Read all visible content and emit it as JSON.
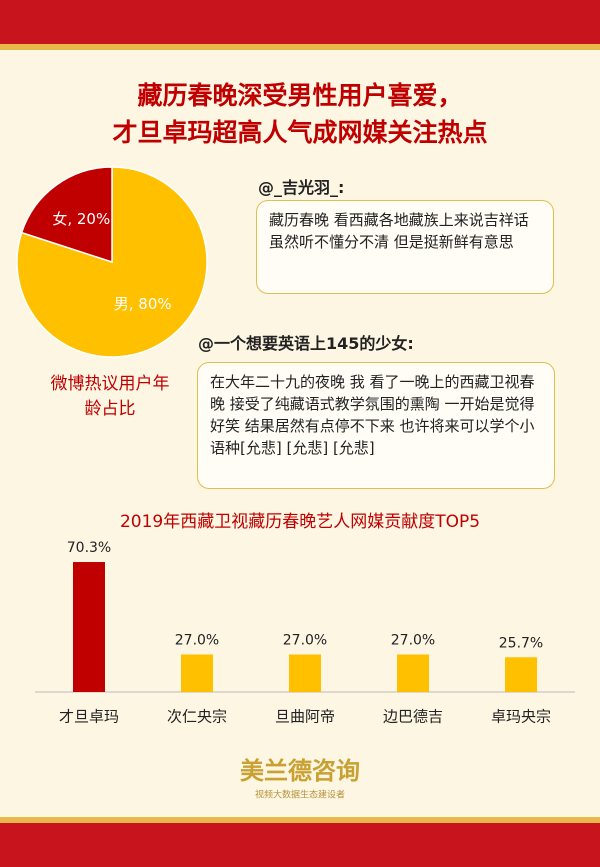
{
  "header": {
    "title_lines": [
      "藏历春晚深受男性用户喜爱，",
      "才旦卓玛超高人气成网媒关注热点"
    ]
  },
  "chart_data": [
    {
      "type": "pie",
      "title": "微博热议用户年龄占比",
      "categories": [
        "男",
        "女"
      ],
      "values": [
        80,
        20
      ],
      "value_labels": [
        "男, 80%",
        "女, 20%"
      ],
      "colors": [
        "#ffc000",
        "#c00000"
      ]
    },
    {
      "type": "bar",
      "title": "2019年西藏卫视藏历春晚艺人网媒贡献度TOP5",
      "categories": [
        "才旦卓玛",
        "次仁央宗",
        "旦曲阿帝",
        "边巴德吉",
        "卓玛央宗"
      ],
      "values": [
        70.3,
        27.0,
        27.0,
        27.0,
        25.7
      ],
      "value_labels": [
        "70.3%",
        "27.0%",
        "27.0%",
        "27.0%",
        "25.7%"
      ],
      "colors": [
        "#c00000",
        "#ffc000",
        "#ffc000",
        "#ffc000",
        "#ffc000"
      ],
      "ylim": [
        16,
        72
      ]
    }
  ],
  "comments": [
    {
      "user": "@_吉光羽_:",
      "text": "藏历春晚 看西藏各地藏族上来说吉祥话 虽然听不懂分不清 但是挺新鲜有意思"
    },
    {
      "user": "@一个想要英语上145的少女:",
      "text": "在大年二十九的夜晚 我 看了一晚上的西藏卫视春晚 接受了纯藏语式教学氛围的熏陶 一开始是觉得好笑 结果居然有点停不下来 也许将来可以学个小语种[允悲] [允悲] [允悲]"
    }
  ],
  "footer": {
    "brand": "美兰德咨询",
    "tagline": "视频大数据生态建设者"
  }
}
